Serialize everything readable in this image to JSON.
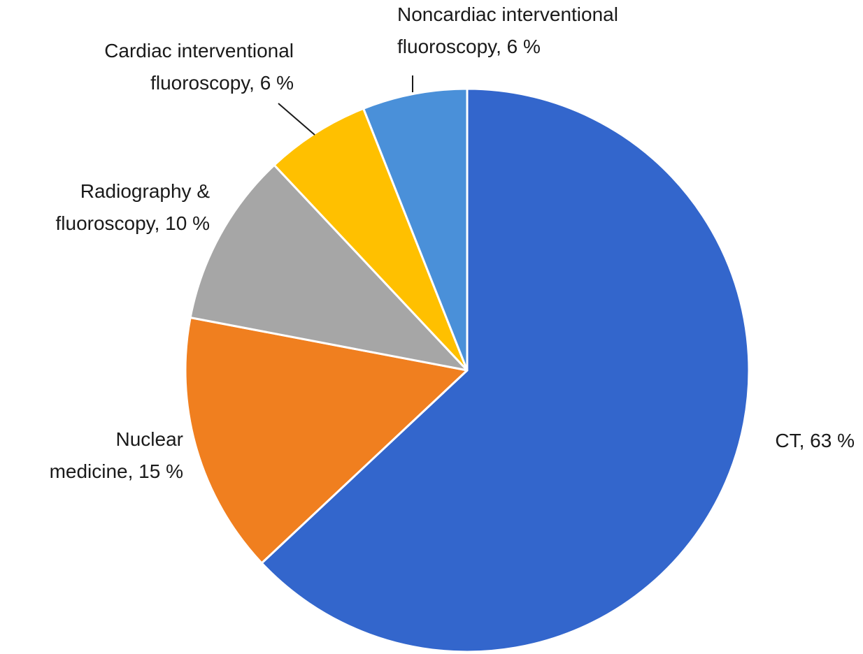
{
  "chart_data": {
    "type": "pie",
    "title": "",
    "start_angle_deg": 0,
    "direction": "clockwise",
    "slices": [
      {
        "category": "CT",
        "value": 63,
        "value_label": "63 %",
        "color": "#3366CC",
        "label_lines": [
          "CT, 63 %"
        ]
      },
      {
        "category": "Nuclear medicine",
        "value": 15,
        "value_label": "15 %",
        "color": "#F07F1F",
        "label_lines": [
          "Nuclear",
          "medicine, 15 %"
        ]
      },
      {
        "category": "Radiography & fluoroscopy",
        "value": 10,
        "value_label": "10 %",
        "color": "#A6A6A6",
        "label_lines": [
          "Radiography &",
          "fluoroscopy, 10 %"
        ]
      },
      {
        "category": "Cardiac interventional fluoroscopy",
        "value": 6,
        "value_label": "6 %",
        "color": "#FFC000",
        "label_lines": [
          "Cardiac interventional",
          "fluoroscopy, 6 %"
        ]
      },
      {
        "category": "Noncardiac interventional fluoroscopy",
        "value": 6,
        "value_label": "6 %",
        "color": "#4A90D9",
        "label_lines": [
          "Noncardiac interventional",
          "fluoroscopy, 6 %"
        ]
      }
    ]
  }
}
